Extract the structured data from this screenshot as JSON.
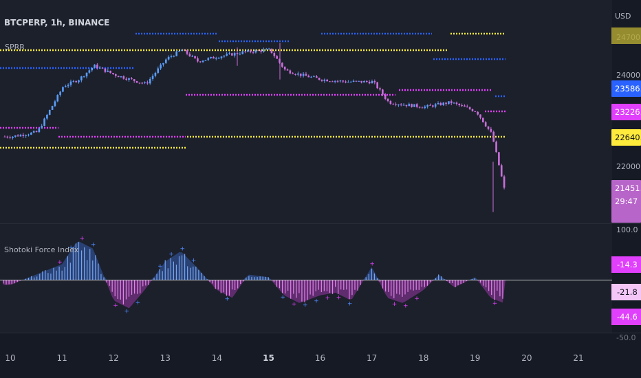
{
  "header": {
    "symbol": "BTCPERP, 1h, BINANCE",
    "study1": "SPRR",
    "study2": "Shotoki Force Index",
    "currency": "USD"
  },
  "price_axis": {
    "ticks": [
      "24000.0",
      "22000.0"
    ],
    "top_cut_label": "24700.0"
  },
  "price_badges": [
    {
      "name": "badge-blue-level",
      "value": "23586.1",
      "bg": "#2962ff",
      "fg": "#ffffff"
    },
    {
      "name": "badge-pink-level",
      "value": "23226.6",
      "bg": "#e040fb",
      "fg": "#ffffff"
    },
    {
      "name": "badge-yellow-level",
      "value": "22640.4",
      "bg": "#ffeb3b",
      "fg": "#131722"
    },
    {
      "name": "badge-last-price",
      "value": "21451.6",
      "sub": "29:47",
      "bg": "#b865c9",
      "fg": "#ffffff"
    }
  ],
  "osc_axis": {
    "top": "100.0",
    "bottom_cut": "-50.0"
  },
  "osc_badges": [
    {
      "name": "badge-osc-1",
      "value": "-14.3",
      "bg": "#e040fb",
      "fg": "#ffffff"
    },
    {
      "name": "badge-osc-2",
      "value": "-21.8",
      "bg": "#f3c6f7",
      "fg": "#131722"
    },
    {
      "name": "badge-osc-3",
      "value": "-44.6",
      "bg": "#e040fb",
      "fg": "#ffffff"
    }
  ],
  "x_axis": {
    "labels": [
      "10",
      "11",
      "12",
      "13",
      "14",
      "15",
      "16",
      "17",
      "18",
      "19",
      "20",
      "21"
    ],
    "bold_label": "15"
  },
  "colors": {
    "up": "#5b9cf6",
    "down": "#c86fd9",
    "yellow": "#ffeb3b",
    "blue": "#2962ff",
    "magenta": "#e040fb"
  },
  "chart_data": [
    {
      "type": "line",
      "title": "BTCPERP, 1h, BINANCE",
      "x": [
        10,
        10.5,
        11,
        11.3,
        11.6,
        12,
        12.3,
        12.6,
        13,
        13.3,
        13.6,
        14,
        14.5,
        15,
        15.3,
        15.6,
        16,
        16.5,
        17,
        17.3,
        17.6,
        18,
        18.5,
        19,
        19.3,
        19.55
      ],
      "values": [
        22650,
        22750,
        23750,
        23900,
        24200,
        24000,
        23900,
        23800,
        24350,
        24550,
        24300,
        24400,
        24500,
        24550,
        24100,
        24000,
        23900,
        23850,
        23850,
        23400,
        23350,
        23300,
        23400,
        23200,
        22700,
        21450
      ],
      "ylim": [
        21000,
        24800
      ],
      "levels": [
        {
          "color": "#ffeb3b",
          "values": [
            24400,
            22640.4
          ]
        },
        {
          "color": "#2962ff",
          "values": [
            24750,
            23586.1
          ]
        },
        {
          "color": "#e040fb",
          "values": [
            22700,
            23226.6
          ]
        }
      ]
    },
    {
      "type": "bar",
      "title": "Shotoki Force Index",
      "x": [
        10,
        10.5,
        11,
        11.3,
        11.6,
        12,
        12.3,
        12.6,
        13,
        13.3,
        13.6,
        14,
        14.3,
        14.6,
        15,
        15.3,
        15.6,
        16,
        16.3,
        16.6,
        17,
        17.3,
        17.6,
        18,
        18.3,
        18.6,
        19,
        19.3,
        19.55
      ],
      "values": [
        -10,
        10,
        30,
        75,
        60,
        -40,
        -55,
        -20,
        35,
        55,
        25,
        -20,
        -35,
        10,
        5,
        -30,
        -45,
        -30,
        -25,
        -40,
        25,
        -35,
        -45,
        -20,
        10,
        -15,
        5,
        -35,
        -44.6
      ],
      "ylim": [
        -50,
        100
      ]
    }
  ]
}
